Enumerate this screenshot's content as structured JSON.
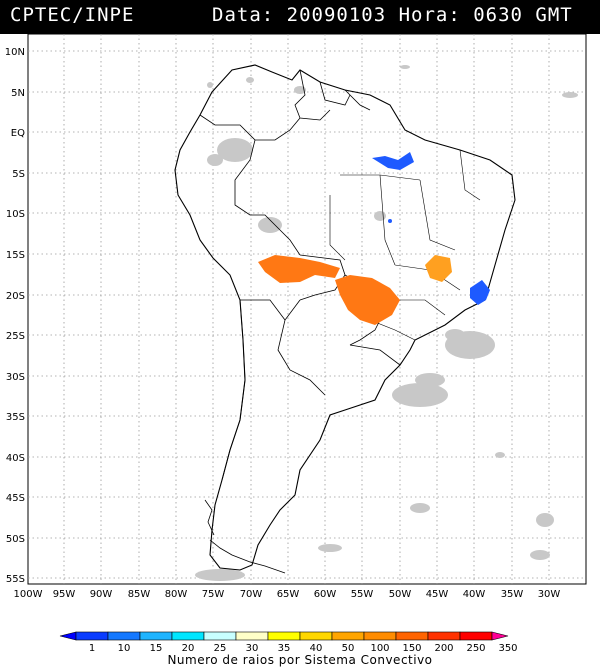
{
  "header": {
    "title": "CPTEC/INPE",
    "date_label": "Data: 20090103 Hora: 0630 GMT"
  },
  "axes": {
    "lat_labels": [
      "10N",
      "5N",
      "EQ",
      "5S",
      "10S",
      "15S",
      "20S",
      "25S",
      "30S",
      "35S",
      "40S",
      "45S",
      "50S",
      "55S"
    ],
    "lon_labels": [
      "100W",
      "95W",
      "90W",
      "85W",
      "80W",
      "75W",
      "70W",
      "65W",
      "60W",
      "55W",
      "50W",
      "45W",
      "40W",
      "35W",
      "30W"
    ]
  },
  "legend": {
    "values": [
      "1",
      "10",
      "15",
      "20",
      "25",
      "30",
      "35",
      "40",
      "50",
      "100",
      "150",
      "200",
      "250",
      "350"
    ],
    "colors": [
      "#0000ff",
      "#0a3cff",
      "#1478ff",
      "#1eb4ff",
      "#00e6ff",
      "#c8ffff",
      "#ffffc8",
      "#ffff00",
      "#ffd700",
      "#ffa500",
      "#ff8c00",
      "#ff6400",
      "#ff3200",
      "#ff0000",
      "#ff0096"
    ],
    "caption": "Numero de raios por Sistema Convectivo"
  },
  "colors": {
    "blue_system": "#1e5aff",
    "orange_system": "#ff7814",
    "amber_system": "#ffa020",
    "cloud_gray": "#c8c8c8"
  }
}
